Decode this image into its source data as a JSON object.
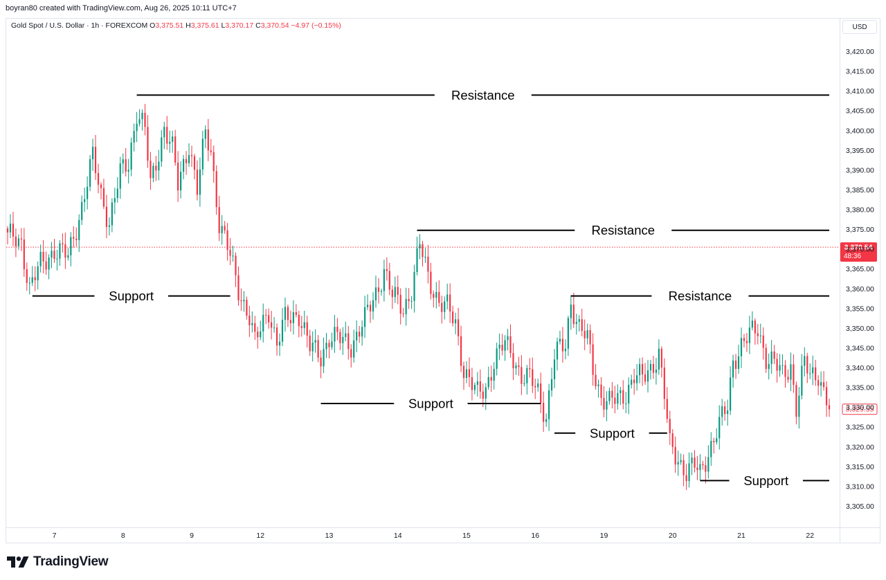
{
  "header": {
    "credit": "boyran80 created with TradingView.com, Aug 26, 2025 10:11 UTC+7"
  },
  "legend": {
    "symbol": "Gold Spot / U.S. Dollar · 1h · FOREXCOM",
    "o_label": "O",
    "o_value": "3,375.51",
    "h_label": "H",
    "h_value": "3,375.61",
    "l_label": "L",
    "l_value": "3,370.17",
    "c_label": "C",
    "c_value": "3,370.54",
    "change": "−4.97 (−0.15%)"
  },
  "currency": "USD",
  "brand": {
    "name": "TradingView"
  },
  "colors": {
    "up": "#089981",
    "down": "#f23645",
    "axis_text": "#131722",
    "grid": "#e0e3eb"
  },
  "chart_data": {
    "type": "candlestick",
    "y_axis": {
      "min": 3300,
      "max": 3425,
      "ticks": [
        3305,
        3310,
        3315,
        3320,
        3325,
        3330,
        3335,
        3340,
        3345,
        3350,
        3355,
        3360,
        3365,
        3370,
        3375,
        3380,
        3385,
        3390,
        3395,
        3400,
        3405,
        3410,
        3415,
        3420
      ],
      "tick_labels": [
        "3,305.00",
        "3,310.00",
        "3,315.00",
        "3,320.00",
        "3,325.00",
        "3,330.00",
        "3,335.00",
        "3,340.00",
        "3,345.00",
        "3,350.00",
        "3,355.00",
        "3,360.00",
        "3,365.00",
        "3,370.00",
        "3,375.00",
        "3,380.00",
        "3,385.00",
        "3,390.00",
        "3,395.00",
        "3,400.00",
        "3,405.00",
        "3,410.00",
        "3,415.00",
        "3,420.00"
      ]
    },
    "x_axis": {
      "tick_labels": [
        "7",
        "8",
        "9",
        "12",
        "13",
        "14",
        "15",
        "16",
        "19",
        "20",
        "21",
        "22"
      ],
      "tick_candle_index": [
        17,
        42,
        67,
        92,
        117,
        142,
        167,
        192,
        217,
        242,
        267,
        292
      ]
    },
    "price_tags": {
      "current": {
        "value": 3370.54,
        "label": "3,370.54",
        "sub": "48:36"
      },
      "last": {
        "value": 3329.55,
        "label": "3,329.55"
      }
    },
    "levels": [
      {
        "label": "Resistance",
        "price": 3409.0,
        "from_index": 47,
        "to_index": 299,
        "label_index": 173
      },
      {
        "label": "Resistance",
        "price": 3374.8,
        "from_index": 149,
        "to_index": 299,
        "label_index": 224
      },
      {
        "label": "Resistance",
        "price": 3358.2,
        "from_index": 205,
        "to_index": 299,
        "label_index": 252
      },
      {
        "label": "Support",
        "price": 3358.2,
        "from_index": 9,
        "to_index": 81,
        "label_index": 45
      },
      {
        "label": "Support",
        "price": 3331.0,
        "from_index": 114,
        "to_index": 194,
        "label_index": 154
      },
      {
        "label": "Support",
        "price": 3323.5,
        "from_index": 199,
        "to_index": 240,
        "label_index": 220
      },
      {
        "label": "Support",
        "price": 3311.5,
        "from_index": 252,
        "to_index": 299,
        "label_index": 276
      }
    ],
    "close_anchors": [
      [
        0,
        3373
      ],
      [
        5,
        3372
      ],
      [
        8,
        3360
      ],
      [
        12,
        3366
      ],
      [
        17,
        3370
      ],
      [
        22,
        3368
      ],
      [
        27,
        3381
      ],
      [
        31,
        3393
      ],
      [
        34,
        3384
      ],
      [
        37,
        3377
      ],
      [
        41,
        3389
      ],
      [
        44,
        3392
      ],
      [
        47,
        3405
      ],
      [
        50,
        3400
      ],
      [
        52,
        3386
      ],
      [
        57,
        3401
      ],
      [
        60,
        3395
      ],
      [
        62,
        3386
      ],
      [
        66,
        3397
      ],
      [
        69,
        3385
      ],
      [
        72,
        3399
      ],
      [
        74,
        3395
      ],
      [
        77,
        3377
      ],
      [
        81,
        3368
      ],
      [
        84,
        3360
      ],
      [
        88,
        3353
      ],
      [
        90,
        3346
      ],
      [
        95,
        3355
      ],
      [
        98,
        3346
      ],
      [
        101,
        3352
      ],
      [
        106,
        3354
      ],
      [
        110,
        3345
      ],
      [
        114,
        3343
      ],
      [
        117,
        3348
      ],
      [
        121,
        3347
      ],
      [
        125,
        3346
      ],
      [
        130,
        3352
      ],
      [
        134,
        3359
      ],
      [
        137,
        3365
      ],
      [
        140,
        3358
      ],
      [
        144,
        3355
      ],
      [
        147,
        3360
      ],
      [
        150,
        3371
      ],
      [
        153,
        3363
      ],
      [
        157,
        3357
      ],
      [
        160,
        3355
      ],
      [
        163,
        3351
      ],
      [
        166,
        3340
      ],
      [
        168,
        3337
      ],
      [
        171,
        3333
      ],
      [
        174,
        3335
      ],
      [
        177,
        3342
      ],
      [
        181,
        3346
      ],
      [
        184,
        3343
      ],
      [
        187,
        3338
      ],
      [
        190,
        3337
      ],
      [
        193,
        3334
      ],
      [
        196,
        3328
      ],
      [
        199,
        3343
      ],
      [
        203,
        3346
      ],
      [
        205,
        3357
      ],
      [
        208,
        3350
      ],
      [
        211,
        3347
      ],
      [
        213,
        3340
      ],
      [
        216,
        3333
      ],
      [
        219,
        3331
      ],
      [
        222,
        3332
      ],
      [
        225,
        3334
      ],
      [
        228,
        3338
      ],
      [
        231,
        3337
      ],
      [
        234,
        3340
      ],
      [
        237,
        3344
      ],
      [
        239,
        3333
      ],
      [
        241,
        3320
      ],
      [
        244,
        3317
      ],
      [
        247,
        3314
      ],
      [
        250,
        3315
      ],
      [
        252,
        3313
      ],
      [
        255,
        3319
      ],
      [
        258,
        3324
      ],
      [
        262,
        3330
      ],
      [
        264,
        3342
      ],
      [
        267,
        3346
      ],
      [
        270,
        3348
      ],
      [
        273,
        3350
      ],
      [
        276,
        3343
      ],
      [
        279,
        3341
      ],
      [
        282,
        3338
      ],
      [
        285,
        3341
      ],
      [
        287,
        3330
      ],
      [
        290,
        3341
      ],
      [
        292,
        3338
      ],
      [
        295,
        3339
      ],
      [
        297,
        3334
      ],
      [
        299,
        3329.55
      ]
    ]
  }
}
